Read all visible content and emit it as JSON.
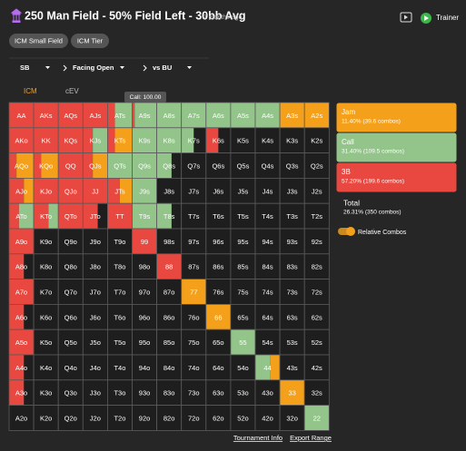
{
  "header": {
    "title": "250 Man Field - 50% Field Left - 30bb Avg",
    "time": "7 months ago",
    "trainer": "Trainer"
  },
  "chips": [
    "ICM Small Field",
    "ICM Tier"
  ],
  "filters": [
    "SB",
    "Facing Open",
    "vs BU"
  ],
  "tabs": [
    "ICM",
    "cEV"
  ],
  "tooltip": "Call: 100.00",
  "grid": {
    "hands": [
      [
        "AA",
        "AKs",
        "AQs",
        "AJs",
        "ATs",
        "A9s",
        "A8s",
        "A7s",
        "A6s",
        "A5s",
        "A4s",
        "A3s",
        "A2s"
      ],
      [
        "AKo",
        "KK",
        "KQs",
        "KJs",
        "KTs",
        "K9s",
        "K8s",
        "K7s",
        "K6s",
        "K5s",
        "K4s",
        "K3s",
        "K2s"
      ],
      [
        "AQo",
        "KQo",
        "QQ",
        "QJs",
        "QTs",
        "Q9s",
        "Q8s",
        "Q7s",
        "Q6s",
        "Q5s",
        "Q4s",
        "Q3s",
        "Q2s"
      ],
      [
        "AJo",
        "KJo",
        "QJo",
        "JJ",
        "JTs",
        "J9s",
        "J8s",
        "J7s",
        "J6s",
        "J5s",
        "J4s",
        "J3s",
        "J2s"
      ],
      [
        "ATo",
        "KTo",
        "QTo",
        "JTo",
        "TT",
        "T9s",
        "T8s",
        "T7s",
        "T6s",
        "T5s",
        "T4s",
        "T3s",
        "T2s"
      ],
      [
        "A9o",
        "K9o",
        "Q9o",
        "J9o",
        "T9o",
        "99",
        "98s",
        "97s",
        "96s",
        "95s",
        "94s",
        "93s",
        "92s"
      ],
      [
        "A8o",
        "K8o",
        "Q8o",
        "J8o",
        "T8o",
        "98o",
        "88",
        "87s",
        "86s",
        "85s",
        "84s",
        "83s",
        "82s"
      ],
      [
        "A7o",
        "K7o",
        "Q7o",
        "J7o",
        "T7o",
        "97o",
        "87o",
        "77",
        "76s",
        "75s",
        "74s",
        "73s",
        "72s"
      ],
      [
        "A6o",
        "K6o",
        "Q6o",
        "J6o",
        "T6o",
        "96o",
        "86o",
        "76o",
        "66",
        "65s",
        "64s",
        "63s",
        "62s"
      ],
      [
        "A5o",
        "K5o",
        "Q5o",
        "J5o",
        "T5o",
        "95o",
        "85o",
        "75o",
        "65o",
        "55",
        "54s",
        "53s",
        "52s"
      ],
      [
        "A4o",
        "K4o",
        "Q4o",
        "J4o",
        "T4o",
        "94o",
        "84o",
        "74o",
        "64o",
        "54o",
        "44",
        "43s",
        "42s"
      ],
      [
        "A3o",
        "K3o",
        "Q3o",
        "J3o",
        "T3o",
        "93o",
        "83o",
        "73o",
        "63o",
        "53o",
        "43o",
        "33",
        "32s"
      ],
      [
        "A2o",
        "K2o",
        "Q2o",
        "J2o",
        "T2o",
        "92o",
        "82o",
        "72o",
        "62o",
        "52o",
        "42o",
        "32o",
        "22"
      ]
    ]
  },
  "legend": [
    {
      "name": "Jam",
      "detail": "11.40% (39.6 combos)",
      "color": "#f5a01a",
      "freq": [
        [
          0,
          0,
          0,
          0,
          0,
          0,
          0,
          0,
          0,
          0,
          0,
          100,
          100
        ],
        [
          0,
          0,
          0,
          0,
          70,
          0,
          0,
          0,
          0,
          0,
          0,
          0,
          0
        ],
        [
          70,
          70,
          0,
          60,
          0,
          0,
          0,
          0,
          0,
          0,
          0,
          0,
          0
        ],
        [
          40,
          0,
          0,
          0,
          50,
          0,
          0,
          0,
          0,
          0,
          0,
          0,
          0
        ],
        [
          0,
          0,
          0,
          0,
          0,
          0,
          0,
          0,
          0,
          0,
          0,
          0,
          0
        ],
        [
          0,
          0,
          0,
          0,
          0,
          0,
          0,
          0,
          0,
          0,
          0,
          0,
          0
        ],
        [
          0,
          0,
          0,
          0,
          0,
          0,
          0,
          0,
          0,
          0,
          0,
          0,
          0
        ],
        [
          0,
          0,
          0,
          0,
          0,
          0,
          0,
          100,
          0,
          0,
          0,
          0,
          0
        ],
        [
          0,
          0,
          0,
          0,
          0,
          0,
          0,
          0,
          100,
          0,
          0,
          0,
          0
        ],
        [
          0,
          0,
          0,
          0,
          0,
          0,
          0,
          0,
          0,
          0,
          0,
          0,
          0
        ],
        [
          0,
          0,
          0,
          0,
          0,
          0,
          0,
          0,
          0,
          0,
          40,
          0,
          0
        ],
        [
          0,
          0,
          0,
          0,
          0,
          0,
          0,
          0,
          0,
          0,
          0,
          100,
          0
        ],
        [
          0,
          0,
          0,
          0,
          0,
          0,
          0,
          0,
          0,
          0,
          0,
          0,
          0
        ]
      ]
    },
    {
      "name": "Call",
      "detail": "31.40% (109.5 combos)",
      "color": "#93c48a",
      "freq": [
        [
          0,
          0,
          0,
          0,
          70,
          90,
          100,
          100,
          100,
          100,
          100,
          0,
          0
        ],
        [
          0,
          0,
          0,
          60,
          0,
          100,
          100,
          50,
          0,
          0,
          0,
          0,
          0
        ],
        [
          0,
          0,
          0,
          0,
          100,
          100,
          60,
          0,
          0,
          0,
          0,
          0,
          0
        ],
        [
          0,
          0,
          0,
          0,
          0,
          100,
          0,
          0,
          0,
          0,
          0,
          0,
          0
        ],
        [
          60,
          40,
          0,
          0,
          0,
          100,
          60,
          0,
          0,
          0,
          0,
          0,
          0
        ],
        [
          0,
          0,
          0,
          0,
          0,
          0,
          0,
          0,
          0,
          0,
          0,
          0,
          0
        ],
        [
          0,
          0,
          0,
          0,
          0,
          0,
          0,
          0,
          0,
          0,
          0,
          0,
          0
        ],
        [
          0,
          0,
          0,
          0,
          0,
          0,
          0,
          0,
          0,
          0,
          0,
          0,
          0
        ],
        [
          0,
          0,
          0,
          0,
          0,
          0,
          0,
          0,
          0,
          0,
          0,
          0,
          0
        ],
        [
          0,
          0,
          0,
          0,
          0,
          0,
          0,
          0,
          0,
          100,
          0,
          0,
          0
        ],
        [
          0,
          0,
          0,
          0,
          0,
          0,
          0,
          0,
          0,
          0,
          60,
          0,
          0
        ],
        [
          0,
          0,
          0,
          0,
          0,
          0,
          0,
          0,
          0,
          0,
          0,
          0,
          0
        ],
        [
          0,
          0,
          0,
          0,
          0,
          0,
          0,
          0,
          0,
          0,
          0,
          0,
          100
        ]
      ]
    },
    {
      "name": "3B",
      "detail": "57.20% (199.6 combos)",
      "color": "#e8483f",
      "freq": [
        [
          100,
          100,
          100,
          100,
          30,
          10,
          0,
          0,
          0,
          0,
          0,
          0,
          0
        ],
        [
          100,
          100,
          100,
          40,
          30,
          0,
          0,
          0,
          50,
          0,
          0,
          0,
          0
        ],
        [
          30,
          30,
          100,
          40,
          0,
          0,
          0,
          0,
          0,
          0,
          0,
          0,
          0
        ],
        [
          60,
          100,
          100,
          100,
          50,
          0,
          0,
          0,
          0,
          0,
          0,
          0,
          0
        ],
        [
          40,
          60,
          100,
          60,
          100,
          0,
          0,
          0,
          0,
          0,
          0,
          0,
          0
        ],
        [
          100,
          0,
          0,
          0,
          0,
          100,
          0,
          0,
          0,
          0,
          0,
          0,
          0
        ],
        [
          60,
          0,
          0,
          0,
          0,
          0,
          100,
          0,
          0,
          0,
          0,
          0,
          0
        ],
        [
          100,
          0,
          0,
          0,
          0,
          0,
          0,
          0,
          0,
          0,
          0,
          0,
          0
        ],
        [
          60,
          0,
          0,
          0,
          0,
          0,
          0,
          0,
          0,
          0,
          0,
          0,
          0
        ],
        [
          100,
          0,
          0,
          0,
          0,
          0,
          0,
          0,
          0,
          0,
          0,
          0,
          0
        ],
        [
          60,
          0,
          0,
          0,
          0,
          0,
          0,
          0,
          0,
          0,
          0,
          0,
          0
        ],
        [
          60,
          0,
          0,
          0,
          0,
          0,
          0,
          0,
          0,
          0,
          0,
          0,
          0
        ],
        [
          0,
          0,
          0,
          0,
          0,
          0,
          0,
          0,
          0,
          0,
          0,
          0,
          0
        ]
      ]
    }
  ],
  "total": {
    "label": "Total",
    "detail": "26.31% (350 combos)"
  },
  "toggle": "Relative Combos",
  "links": [
    "Tournament Info",
    "Export Range"
  ]
}
